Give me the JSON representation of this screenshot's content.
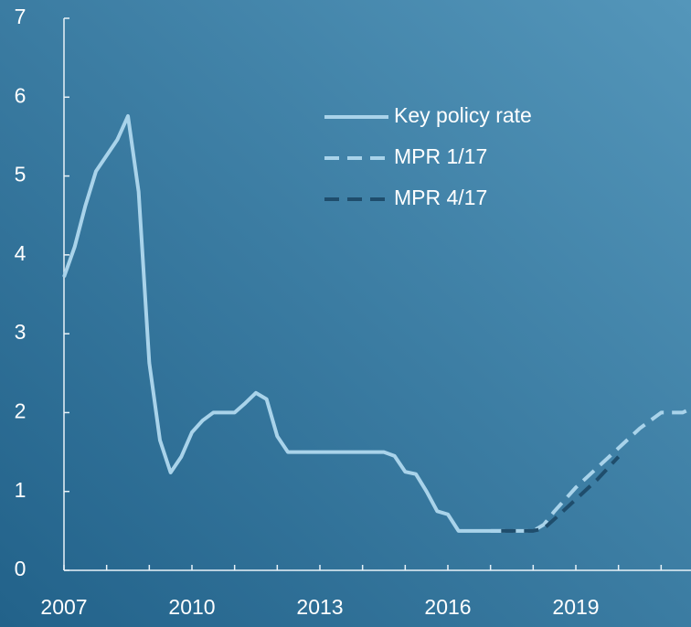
{
  "chart_data": {
    "type": "line",
    "xlim": [
      2007,
      2021.7
    ],
    "ylim": [
      0,
      7
    ],
    "xticks": [
      2007,
      2010,
      2013,
      2016,
      2019
    ],
    "xminor_ticks": [
      2008,
      2009,
      2011,
      2012,
      2014,
      2015,
      2017,
      2018,
      2020,
      2021
    ],
    "yticks": [
      0,
      1,
      2,
      3,
      4,
      5,
      6,
      7
    ],
    "legend": "upper right",
    "series": [
      {
        "name": "Key policy rate",
        "color": "#a9d3ea",
        "dash": false,
        "x": [
          2007,
          2007.25,
          2007.5,
          2007.75,
          2008,
          2008.25,
          2008.5,
          2008.75,
          2009,
          2009.25,
          2009.5,
          2009.75,
          2010,
          2010.25,
          2010.5,
          2010.75,
          2011,
          2011.25,
          2011.5,
          2011.75,
          2012,
          2012.25,
          2012.5,
          2012.75,
          2013,
          2013.25,
          2013.5,
          2013.75,
          2014,
          2014.25,
          2014.5,
          2014.75,
          2015,
          2015.25,
          2015.5,
          2015.75,
          2016,
          2016.25,
          2016.5,
          2016.75,
          2017,
          2017.25
        ],
        "values": [
          3.72,
          4.1,
          4.62,
          5.06,
          5.26,
          5.46,
          5.76,
          4.8,
          2.63,
          1.65,
          1.24,
          1.44,
          1.75,
          1.9,
          2.0,
          2.0,
          2.0,
          2.12,
          2.25,
          2.17,
          1.7,
          1.5,
          1.5,
          1.5,
          1.5,
          1.5,
          1.5,
          1.5,
          1.5,
          1.5,
          1.5,
          1.45,
          1.25,
          1.22,
          1.0,
          0.75,
          0.71,
          0.5,
          0.5,
          0.5,
          0.5,
          0.5
        ]
      },
      {
        "name": "MPR 1/17",
        "color": "#a9d3ea",
        "dash": true,
        "x": [
          2017,
          2017.5,
          2018,
          2018.25,
          2018.5,
          2019,
          2019.5,
          2020,
          2020.5,
          2021,
          2021.5,
          2021.7
        ],
        "values": [
          0.5,
          0.5,
          0.5,
          0.58,
          0.75,
          1.05,
          1.3,
          1.55,
          1.8,
          2.0,
          2.0,
          2.05
        ]
      },
      {
        "name": "MPR 4/17",
        "color": "#1f4d6c",
        "dash": true,
        "x": [
          2017.25,
          2017.5,
          2018,
          2018.25,
          2018.5,
          2019,
          2019.5,
          2020
        ],
        "values": [
          0.5,
          0.5,
          0.5,
          0.53,
          0.65,
          0.9,
          1.15,
          1.44
        ]
      }
    ]
  }
}
